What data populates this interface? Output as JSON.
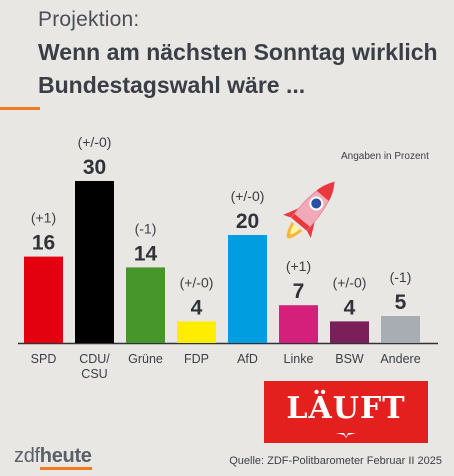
{
  "header": {
    "pre_title": "Projektion:",
    "title": "Wenn am nächsten Sonntag wirklich Bundestagswahl wäre ..."
  },
  "chart_data": {
    "type": "bar",
    "unit_note": "Angaben in Prozent",
    "categories": [
      "SPD",
      "CDU/\nCSU",
      "Grüne",
      "FDP",
      "AfD",
      "Linke",
      "BSW",
      "Andere"
    ],
    "values": [
      16,
      30,
      14,
      4,
      20,
      7,
      4,
      5
    ],
    "changes": [
      "(+1)",
      "(+/-0)",
      "(-1)",
      "(+/-0)",
      "(+/-0)",
      "(+1)",
      "(+/-0)",
      "(-1)"
    ],
    "colors": [
      "#e3000f",
      "#000000",
      "#46962b",
      "#ffed00",
      "#009ee0",
      "#d4207a",
      "#7b1f5a",
      "#a8adb4"
    ],
    "ylim": [
      0,
      30
    ]
  },
  "sticker": {
    "text": "LÄUFT",
    "icon": "rocket-icon"
  },
  "footer": {
    "logo_zdf": "zdf",
    "logo_heute": "heute",
    "source": "Quelle: ZDF-Politbarometer Februar II 2025"
  }
}
